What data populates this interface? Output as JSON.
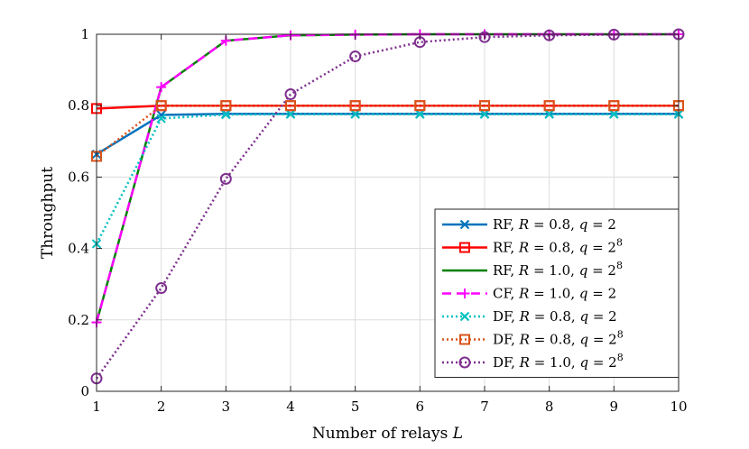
{
  "chart_data": {
    "type": "line",
    "title": "",
    "xlabel": "Number of relays L",
    "ylabel": "Throughput",
    "xlim": [
      1,
      10
    ],
    "ylim": [
      0,
      1
    ],
    "xticks": [
      1,
      2,
      3,
      4,
      5,
      6,
      7,
      8,
      9,
      10
    ],
    "yticks": [
      0,
      0.2,
      0.4,
      0.6,
      0.8,
      1
    ],
    "ytick_labels": [
      "0",
      "0.2",
      "0.4",
      "0.6",
      "0.8",
      "1"
    ],
    "grid": true,
    "legend_position": "bottom-right",
    "x": [
      1,
      2,
      3,
      4,
      5,
      6,
      7,
      8,
      9,
      10
    ],
    "series": [
      {
        "name": "RF, R = 0.8, q = 2",
        "color": "#0072BD",
        "linestyle": "solid",
        "marker": "x",
        "values": [
          0.664,
          0.774,
          0.777,
          0.777,
          0.777,
          0.777,
          0.777,
          0.777,
          0.777,
          0.777
        ]
      },
      {
        "name": "RF, R = 0.8, q = 2^8",
        "color": "#FF0000",
        "linestyle": "solid",
        "marker": "square",
        "values": [
          0.792,
          0.8,
          0.8,
          0.8,
          0.8,
          0.8,
          0.8,
          0.8,
          0.8,
          0.8
        ]
      },
      {
        "name": "RF, R = 1.0, q = 2^8",
        "color": "#008000",
        "linestyle": "solid",
        "marker": "none",
        "values": [
          0.193,
          0.852,
          0.982,
          0.997,
          0.999,
          1.0,
          1.0,
          1.0,
          1.0,
          1.0
        ]
      },
      {
        "name": "CF, R = 1.0, q = 2",
        "color": "#FF00FF",
        "linestyle": "dashed",
        "marker": "plus",
        "values": [
          0.193,
          0.852,
          0.982,
          0.997,
          0.999,
          1.0,
          1.0,
          1.0,
          1.0,
          1.0
        ]
      },
      {
        "name": "DF, R = 0.8, q = 2",
        "color": "#00BFBF",
        "linestyle": "dotted",
        "marker": "x",
        "values": [
          0.413,
          0.764,
          0.775,
          0.776,
          0.776,
          0.776,
          0.776,
          0.776,
          0.776,
          0.776
        ]
      },
      {
        "name": "DF, R = 0.8, q = 2^8",
        "color": "#D95319",
        "linestyle": "dotted",
        "marker": "square",
        "values": [
          0.658,
          0.8,
          0.8,
          0.8,
          0.8,
          0.8,
          0.8,
          0.8,
          0.8,
          0.8
        ]
      },
      {
        "name": "DF, R = 1.0, q = 2^8",
        "color": "#7E2F8E",
        "linestyle": "dotted",
        "marker": "circle",
        "values": [
          0.036,
          0.289,
          0.595,
          0.832,
          0.938,
          0.978,
          0.992,
          0.997,
          0.999,
          1.0
        ]
      }
    ],
    "legend": [
      {
        "scheme": "RF",
        "R": "0.8",
        "q_base": "2",
        "q_exp": ""
      },
      {
        "scheme": "RF",
        "R": "0.8",
        "q_base": "2",
        "q_exp": "8"
      },
      {
        "scheme": "RF",
        "R": "1.0",
        "q_base": "2",
        "q_exp": "8"
      },
      {
        "scheme": "CF",
        "R": "1.0",
        "q_base": "2",
        "q_exp": ""
      },
      {
        "scheme": "DF",
        "R": "0.8",
        "q_base": "2",
        "q_exp": ""
      },
      {
        "scheme": "DF",
        "R": "0.8",
        "q_base": "2",
        "q_exp": "8"
      },
      {
        "scheme": "DF",
        "R": "1.0",
        "q_base": "2",
        "q_exp": "8"
      }
    ],
    "legend_symbols": {
      "R": "R",
      "q": "q",
      "eq": " = ",
      "sep": ", "
    },
    "xlabel_text": "Number of relays ",
    "xlabel_var": "L"
  }
}
